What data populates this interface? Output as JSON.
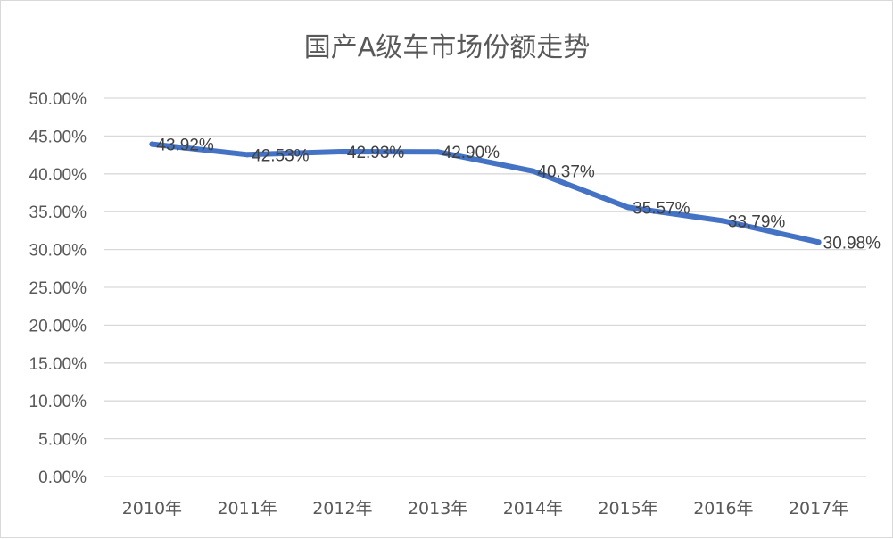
{
  "chart_data": {
    "type": "line",
    "title": "国产A级车市场份额走势",
    "xlabel": "",
    "ylabel": "",
    "categories": [
      "2010年",
      "2011年",
      "2012年",
      "2013年",
      "2014年",
      "2015年",
      "2016年",
      "2017年"
    ],
    "series": [
      {
        "values": [
          43.92,
          42.53,
          42.93,
          42.9,
          40.37,
          35.57,
          33.79,
          30.98
        ],
        "labels": [
          "43.92%",
          "42.53%",
          "42.93%",
          "42.90%",
          "40.37%",
          "35.57%",
          "33.79%",
          "30.98%"
        ],
        "color": "#4472c4"
      }
    ],
    "ylim": [
      0,
      50
    ],
    "yticks": [
      0,
      5,
      10,
      15,
      20,
      25,
      30,
      35,
      40,
      45,
      50
    ],
    "ytick_labels": [
      "0.00%",
      "5.00%",
      "10.00%",
      "15.00%",
      "20.00%",
      "25.00%",
      "30.00%",
      "35.00%",
      "40.00%",
      "45.00%",
      "50.00%"
    ],
    "grid": true,
    "legend": "none"
  }
}
